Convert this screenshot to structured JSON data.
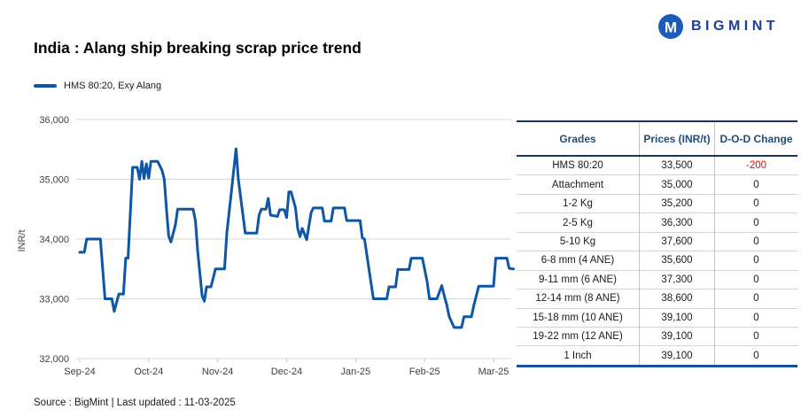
{
  "logo": {
    "text": "BIGMINT",
    "icon_color": "#1A5CB8",
    "text_color": "#1B3F9E"
  },
  "chart": {
    "title": "India : Alang ship breaking scrap price trend",
    "legend": "HMS 80:20, Exy Alang",
    "line_color": "#0E56A6",
    "grid_color": "#D9D9D9",
    "axis_text_color": "#404040"
  },
  "chart_data": {
    "type": "line",
    "title": "India : Alang ship breaking scrap price trend",
    "ylabel": "INR/t",
    "ylim": [
      32000,
      36000
    ],
    "ytick_step": 1000,
    "ytick_labels": [
      "32,000",
      "33,000",
      "34,000",
      "35,000",
      "36,000"
    ],
    "xtick_labels": [
      "Sep-24",
      "Oct-24",
      "Nov-24",
      "Dec-24",
      "Jan-25",
      "Feb-25",
      "Mar-25"
    ],
    "grid": "horizontal",
    "legend_position": "top-left",
    "series": [
      {
        "name": "HMS 80:20, Exy Alang",
        "points": [
          [
            "2024-09-01",
            33780
          ],
          [
            "2024-09-03",
            33780
          ],
          [
            "2024-09-04",
            34000
          ],
          [
            "2024-09-10",
            34000
          ],
          [
            "2024-09-12",
            33000
          ],
          [
            "2024-09-15",
            33000
          ],
          [
            "2024-09-16",
            32790
          ],
          [
            "2024-09-18",
            33080
          ],
          [
            "2024-09-20",
            33080
          ],
          [
            "2024-09-21",
            33680
          ],
          [
            "2024-09-22",
            33680
          ],
          [
            "2024-09-24",
            35200
          ],
          [
            "2024-09-26",
            35200
          ],
          [
            "2024-09-27",
            35000
          ],
          [
            "2024-09-28",
            35300
          ],
          [
            "2024-09-29",
            35010
          ],
          [
            "2024-09-30",
            35260
          ],
          [
            "2024-10-01",
            35020
          ],
          [
            "2024-10-02",
            35300
          ],
          [
            "2024-10-05",
            35300
          ],
          [
            "2024-10-07",
            35150
          ],
          [
            "2024-10-08",
            35000
          ],
          [
            "2024-10-09",
            34500
          ],
          [
            "2024-10-10",
            34050
          ],
          [
            "2024-10-11",
            33950
          ],
          [
            "2024-10-13",
            34240
          ],
          [
            "2024-10-14",
            34500
          ],
          [
            "2024-10-21",
            34500
          ],
          [
            "2024-10-22",
            34300
          ],
          [
            "2024-10-23",
            33800
          ],
          [
            "2024-10-25",
            33050
          ],
          [
            "2024-10-26",
            32960
          ],
          [
            "2024-10-27",
            33200
          ],
          [
            "2024-10-29",
            33200
          ],
          [
            "2024-10-31",
            33500
          ],
          [
            "2024-11-04",
            33500
          ],
          [
            "2024-11-05",
            34100
          ],
          [
            "2024-11-07",
            34800
          ],
          [
            "2024-11-09",
            35510
          ],
          [
            "2024-11-10",
            35000
          ],
          [
            "2024-11-12",
            34400
          ],
          [
            "2024-11-13",
            34100
          ],
          [
            "2024-11-18",
            34100
          ],
          [
            "2024-11-19",
            34400
          ],
          [
            "2024-11-20",
            34500
          ],
          [
            "2024-11-22",
            34500
          ],
          [
            "2024-11-23",
            34680
          ],
          [
            "2024-11-24",
            34400
          ],
          [
            "2024-11-27",
            34380
          ],
          [
            "2024-11-28",
            34490
          ],
          [
            "2024-11-30",
            34490
          ],
          [
            "2024-12-01",
            34360
          ],
          [
            "2024-12-02",
            34790
          ],
          [
            "2024-12-03",
            34790
          ],
          [
            "2024-12-05",
            34520
          ],
          [
            "2024-12-06",
            34170
          ],
          [
            "2024-12-07",
            34040
          ],
          [
            "2024-12-08",
            34180
          ],
          [
            "2024-12-10",
            33990
          ],
          [
            "2024-12-12",
            34440
          ],
          [
            "2024-12-13",
            34520
          ],
          [
            "2024-12-17",
            34520
          ],
          [
            "2024-12-18",
            34300
          ],
          [
            "2024-12-21",
            34300
          ],
          [
            "2024-12-22",
            34520
          ],
          [
            "2024-12-27",
            34520
          ],
          [
            "2024-12-28",
            34310
          ],
          [
            "2025-01-03",
            34310
          ],
          [
            "2025-01-04",
            34020
          ],
          [
            "2025-01-05",
            34000
          ],
          [
            "2025-01-07",
            33500
          ],
          [
            "2025-01-09",
            33000
          ],
          [
            "2025-01-15",
            33000
          ],
          [
            "2025-01-16",
            33200
          ],
          [
            "2025-01-19",
            33200
          ],
          [
            "2025-01-20",
            33490
          ],
          [
            "2025-01-25",
            33490
          ],
          [
            "2025-01-26",
            33680
          ],
          [
            "2025-01-31",
            33680
          ],
          [
            "2025-02-02",
            33300
          ],
          [
            "2025-02-03",
            33000
          ],
          [
            "2025-02-06",
            33000
          ],
          [
            "2025-02-08",
            33220
          ],
          [
            "2025-02-09",
            33050
          ],
          [
            "2025-02-10",
            32900
          ],
          [
            "2025-02-11",
            32700
          ],
          [
            "2025-02-13",
            32520
          ],
          [
            "2025-02-16",
            32520
          ],
          [
            "2025-02-17",
            32700
          ],
          [
            "2025-02-20",
            32700
          ],
          [
            "2025-02-21",
            32890
          ],
          [
            "2025-02-23",
            33210
          ],
          [
            "2025-03-01",
            33210
          ],
          [
            "2025-03-02",
            33680
          ],
          [
            "2025-03-07",
            33680
          ],
          [
            "2025-03-08",
            33510
          ],
          [
            "2025-03-10",
            33500
          ]
        ]
      }
    ]
  },
  "table": {
    "headers": [
      "Grades",
      "Prices (INR/t)",
      "D-O-D Change"
    ],
    "header_color": "#1F4E79",
    "negative_color": "#FF0000",
    "rows": [
      [
        "HMS 80:20",
        "33,500",
        "-200"
      ],
      [
        "Attachment",
        "35,000",
        "0"
      ],
      [
        "1-2 Kg",
        "35,200",
        "0"
      ],
      [
        "2-5 Kg",
        "36,300",
        "0"
      ],
      [
        "5-10 Kg",
        "37,600",
        "0"
      ],
      [
        "6-8 mm (4 ANE)",
        "35,600",
        "0"
      ],
      [
        "9-11 mm (6 ANE)",
        "37,300",
        "0"
      ],
      [
        "12-14 mm (8 ANE)",
        "38,600",
        "0"
      ],
      [
        "15-18 mm (10 ANE)",
        "39,100",
        "0"
      ],
      [
        "19-22 mm (12 ANE)",
        "39,100",
        "0"
      ],
      [
        "1 Inch",
        "39,100",
        "0"
      ]
    ]
  },
  "footer": {
    "source": "Source : BigMint | Last updated : 11-03-2025"
  }
}
